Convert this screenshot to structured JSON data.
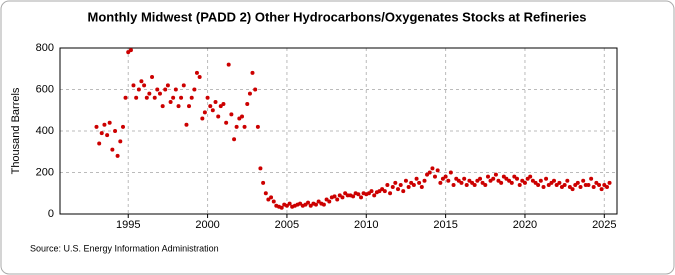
{
  "chart_data": {
    "type": "scatter",
    "title": "Monthly Midwest (PADD 2) Other Hydrocarbons/Oxygenates Stocks at Refineries",
    "y_label": "Thousand Barrels",
    "source": "Source: U.S. Energy Information Administration",
    "color": "#cc0000",
    "grid": true,
    "xlim": [
      1990.7,
      2025.8
    ],
    "xticks": [
      1995,
      2000,
      2005,
      2010,
      2015,
      2020,
      2025
    ],
    "ylim": [
      0,
      800
    ],
    "yticks": [
      0,
      200,
      400,
      600,
      800
    ],
    "x": [
      1993,
      1993.17,
      1993.33,
      1993.5,
      1993.67,
      1993.83,
      1994,
      1994.17,
      1994.33,
      1994.5,
      1994.67,
      1994.83,
      1995,
      1995.17,
      1995.33,
      1995.5,
      1995.67,
      1995.83,
      1996,
      1996.17,
      1996.33,
      1996.5,
      1996.67,
      1996.83,
      1997,
      1997.17,
      1997.33,
      1997.5,
      1997.67,
      1997.83,
      1998,
      1998.17,
      1998.33,
      1998.5,
      1998.67,
      1998.83,
      1999,
      1999.17,
      1999.33,
      1999.5,
      1999.67,
      1999.83,
      2000,
      2000.17,
      2000.33,
      2000.5,
      2000.67,
      2000.83,
      2001,
      2001.17,
      2001.33,
      2001.5,
      2001.67,
      2001.83,
      2002,
      2002.17,
      2002.33,
      2002.5,
      2002.67,
      2002.83,
      2003,
      2003.17,
      2003.33,
      2003.5,
      2003.67,
      2003.83,
      2004,
      2004.17,
      2004.33,
      2004.5,
      2004.67,
      2004.83,
      2005,
      2005.17,
      2005.33,
      2005.5,
      2005.67,
      2005.83,
      2006,
      2006.17,
      2006.33,
      2006.5,
      2006.67,
      2006.83,
      2007,
      2007.17,
      2007.33,
      2007.5,
      2007.67,
      2007.83,
      2008,
      2008.17,
      2008.33,
      2008.5,
      2008.67,
      2008.83,
      2009,
      2009.17,
      2009.33,
      2009.5,
      2009.67,
      2009.83,
      2010,
      2010.17,
      2010.33,
      2010.5,
      2010.67,
      2010.83,
      2011,
      2011.17,
      2011.33,
      2011.5,
      2011.67,
      2011.83,
      2012,
      2012.17,
      2012.33,
      2012.5,
      2012.67,
      2012.83,
      2013,
      2013.17,
      2013.33,
      2013.5,
      2013.67,
      2013.83,
      2014,
      2014.17,
      2014.33,
      2014.5,
      2014.67,
      2014.83,
      2015,
      2015.17,
      2015.33,
      2015.5,
      2015.67,
      2015.83,
      2016,
      2016.17,
      2016.33,
      2016.5,
      2016.67,
      2016.83,
      2017,
      2017.17,
      2017.33,
      2017.5,
      2017.67,
      2017.83,
      2018,
      2018.17,
      2018.33,
      2018.5,
      2018.67,
      2018.83,
      2019,
      2019.17,
      2019.33,
      2019.5,
      2019.67,
      2019.83,
      2020,
      2020.17,
      2020.33,
      2020.5,
      2020.67,
      2020.83,
      2021,
      2021.17,
      2021.33,
      2021.5,
      2021.67,
      2021.83,
      2022,
      2022.17,
      2022.33,
      2022.5,
      2022.67,
      2022.83,
      2023,
      2023.17,
      2023.33,
      2023.5,
      2023.67,
      2023.83,
      2024,
      2024.17,
      2024.33,
      2024.5,
      2024.67,
      2024.83,
      2025,
      2025.17,
      2025.33
    ],
    "values": [
      420,
      340,
      390,
      430,
      380,
      440,
      310,
      400,
      280,
      350,
      420,
      560,
      780,
      790,
      620,
      560,
      600,
      640,
      620,
      560,
      580,
      660,
      560,
      600,
      580,
      520,
      600,
      620,
      540,
      560,
      600,
      520,
      560,
      620,
      430,
      520,
      560,
      600,
      680,
      660,
      460,
      490,
      560,
      520,
      500,
      540,
      470,
      520,
      530,
      440,
      720,
      480,
      360,
      420,
      460,
      470,
      420,
      530,
      580,
      680,
      600,
      420,
      220,
      150,
      100,
      70,
      80,
      60,
      40,
      35,
      30,
      45,
      40,
      50,
      35,
      40,
      45,
      50,
      40,
      45,
      55,
      40,
      50,
      45,
      60,
      50,
      45,
      70,
      60,
      80,
      85,
      70,
      90,
      80,
      100,
      90,
      90,
      85,
      100,
      95,
      80,
      100,
      95,
      100,
      110,
      90,
      105,
      110,
      120,
      110,
      140,
      100,
      130,
      150,
      120,
      140,
      110,
      160,
      130,
      150,
      140,
      170,
      150,
      130,
      160,
      190,
      200,
      220,
      180,
      210,
      150,
      170,
      180,
      160,
      200,
      140,
      170,
      160,
      150,
      170,
      140,
      160,
      150,
      140,
      160,
      170,
      150,
      140,
      180,
      160,
      170,
      190,
      160,
      150,
      180,
      170,
      160,
      150,
      180,
      170,
      140,
      160,
      150,
      170,
      180,
      160,
      150,
      140,
      160,
      130,
      170,
      140,
      150,
      160,
      140,
      150,
      130,
      140,
      160,
      130,
      120,
      140,
      150,
      130,
      160,
      140,
      140,
      170,
      130,
      150,
      140,
      120,
      140,
      130,
      150
    ]
  }
}
